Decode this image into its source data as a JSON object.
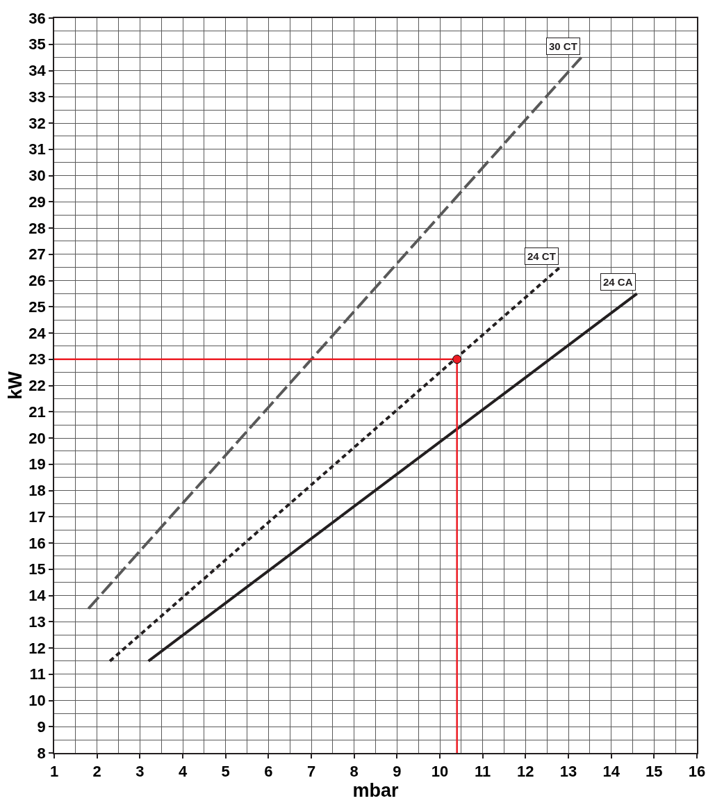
{
  "chart_data": {
    "type": "line",
    "xlabel": "mbar",
    "ylabel": "kW",
    "xlim": [
      1,
      16
    ],
    "ylim": [
      8,
      36
    ],
    "xticks": [
      1,
      {
        "value": 1.5,
        "label": null
      },
      2,
      {
        "value": 2.5,
        "label": null
      },
      3,
      {
        "value": 3.5,
        "label": null
      },
      4,
      {
        "value": 4.5,
        "label": null
      },
      5,
      {
        "value": 5.5,
        "label": null
      },
      6,
      {
        "value": 6.5,
        "label": null
      },
      7,
      {
        "value": 7.5,
        "label": null
      },
      8,
      {
        "value": 8.5,
        "label": null
      },
      9,
      {
        "value": 9.5,
        "label": null
      },
      10,
      {
        "value": 10.5,
        "label": null
      },
      11,
      {
        "value": 11.5,
        "label": null
      },
      12,
      {
        "value": 12.5,
        "label": null
      },
      13,
      {
        "value": 13.5,
        "label": null
      },
      14,
      {
        "value": 14.5,
        "label": null
      },
      15,
      {
        "value": 15.5,
        "label": null
      },
      16
    ],
    "yticks": [
      8,
      {
        "value": 8.5,
        "label": null
      },
      9,
      {
        "value": 9.5,
        "label": null
      },
      10,
      {
        "value": 10.5,
        "label": null
      },
      11,
      {
        "value": 11.5,
        "label": null
      },
      12,
      {
        "value": 12.5,
        "label": null
      },
      13,
      {
        "value": 13.5,
        "label": null
      },
      14,
      {
        "value": 14.5,
        "label": null
      },
      15,
      {
        "value": 15.5,
        "label": null
      },
      16,
      {
        "value": 16.5,
        "label": null
      },
      17,
      {
        "value": 17.5,
        "label": null
      },
      18,
      {
        "value": 18.5,
        "label": null
      },
      19,
      {
        "value": 19.5,
        "label": null
      },
      20,
      {
        "value": 20.5,
        "label": null
      },
      21,
      {
        "value": 21.5,
        "label": null
      },
      22,
      {
        "value": 22.5,
        "label": null
      },
      23,
      {
        "value": 23.5,
        "label": null
      },
      24,
      {
        "value": 24.5,
        "label": null
      },
      25,
      {
        "value": 25.5,
        "label": null
      },
      26,
      {
        "value": 26.5,
        "label": null
      },
      27,
      {
        "value": 27.5,
        "label": null
      },
      28,
      {
        "value": 28.5,
        "label": null
      },
      29,
      {
        "value": 29.5,
        "label": null
      },
      30,
      {
        "value": 30.5,
        "label": null
      },
      31,
      {
        "value": 31.5,
        "label": null
      },
      32,
      {
        "value": 32.5,
        "label": null
      },
      33,
      {
        "value": 33.5,
        "label": null
      },
      34,
      {
        "value": 34.5,
        "label": null
      },
      35,
      {
        "value": 35.5,
        "label": null
      },
      36
    ],
    "grid": true,
    "legend": false,
    "series": [
      {
        "name": "30 CT",
        "color": "#595959",
        "line_style": "dashed",
        "x": [
          1.8,
          13.3
        ],
        "values": [
          13.5,
          34.5
        ]
      },
      {
        "name": "24 CT",
        "color": "#231f20",
        "line_style": "dotted",
        "x": [
          2.3,
          12.8
        ],
        "values": [
          11.5,
          26.5
        ]
      },
      {
        "name": "24 CA",
        "color": "#231f20",
        "line_style": "solid",
        "x": [
          3.2,
          14.6
        ],
        "values": [
          11.5,
          25.5
        ]
      },
      {
        "type": "line",
        "color": "#ed1c24",
        "line_style": "solid",
        "x": [
          1,
          10.4,
          10.4
        ],
        "values": [
          23,
          23,
          8
        ]
      },
      {
        "type": "scatter",
        "color": "#ed1c24",
        "marker": "circle",
        "x": [
          10.4
        ],
        "values": [
          23
        ]
      }
    ]
  }
}
